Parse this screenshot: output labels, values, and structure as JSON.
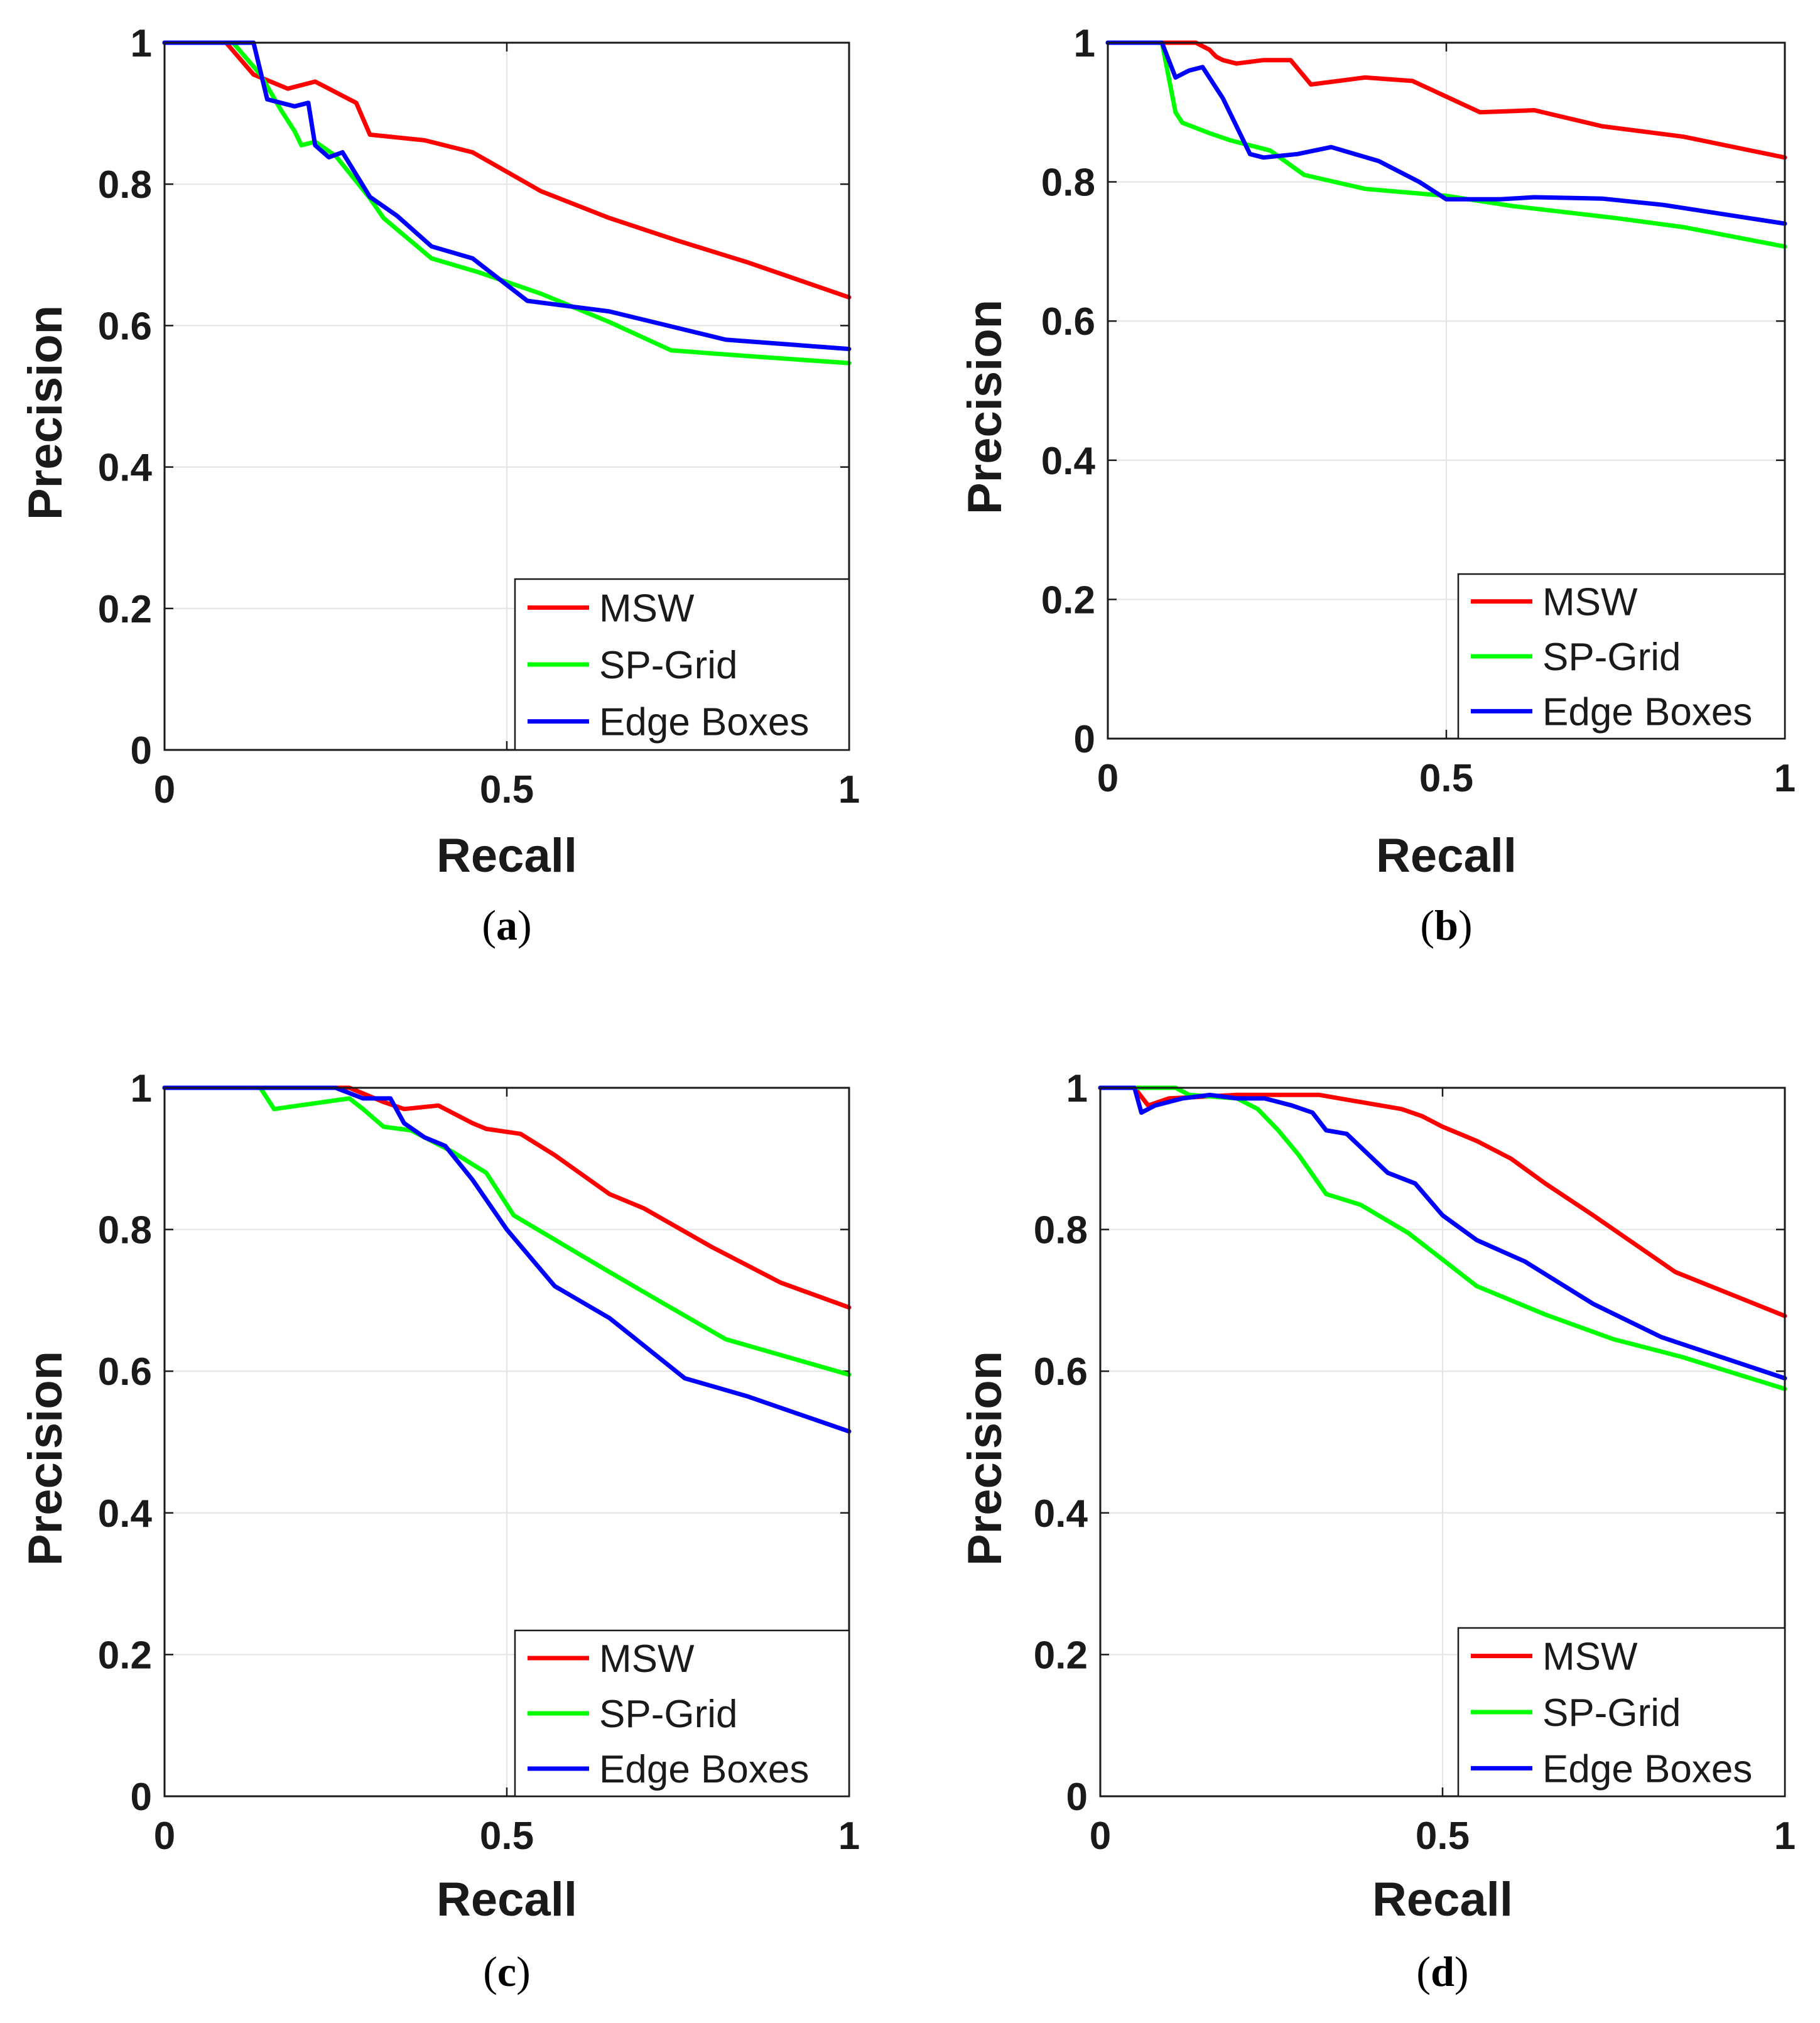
{
  "colors": {
    "MSW": "#ff0000",
    "SP-Grid": "#00ff00",
    "Edge Boxes": "#0000ff",
    "grid": "#e3e3e3",
    "axis": "#1a1a1a"
  },
  "chart_data": [
    {
      "type": "line",
      "panel": "a",
      "caption": "(a)",
      "xlabel": "Recall",
      "ylabel": "Precision",
      "xlim": [
        0,
        1
      ],
      "ylim": [
        0,
        1
      ],
      "xticks": [
        0,
        0.5,
        1
      ],
      "xtick_labels": [
        "0",
        "0.5",
        "1"
      ],
      "yticks": [
        0,
        0.2,
        0.4,
        0.6,
        0.8,
        1
      ],
      "ytick_labels": [
        "0",
        "0.2",
        "0.4",
        "0.6",
        "0.8",
        "1"
      ],
      "grid": true,
      "legend": "bottom-right",
      "series": [
        {
          "name": "MSW",
          "color": "#ff0000",
          "x": [
            0,
            0.09,
            0.13,
            0.18,
            0.22,
            0.26,
            0.28,
            0.3,
            0.38,
            0.45,
            0.55,
            0.65,
            0.75,
            0.85,
            1.0
          ],
          "y": [
            1,
            1,
            0.955,
            0.935,
            0.945,
            0.925,
            0.915,
            0.87,
            0.862,
            0.845,
            0.79,
            0.752,
            0.72,
            0.69,
            0.64
          ]
        },
        {
          "name": "SP-Grid",
          "color": "#00ff00",
          "x": [
            0,
            0.1,
            0.14,
            0.17,
            0.19,
            0.2,
            0.22,
            0.25,
            0.3,
            0.32,
            0.39,
            0.46,
            0.55,
            0.65,
            0.74,
            0.85,
            1.0
          ],
          "y": [
            1,
            1,
            0.955,
            0.905,
            0.875,
            0.855,
            0.86,
            0.84,
            0.78,
            0.752,
            0.695,
            0.675,
            0.645,
            0.605,
            0.565,
            0.557,
            0.547
          ]
        },
        {
          "name": "Edge Boxes",
          "color": "#0000ff",
          "x": [
            0,
            0.12,
            0.13,
            0.15,
            0.19,
            0.21,
            0.22,
            0.24,
            0.26,
            0.3,
            0.34,
            0.39,
            0.45,
            0.53,
            0.65,
            0.82,
            1.0
          ],
          "y": [
            1,
            1,
            1,
            0.92,
            0.91,
            0.915,
            0.855,
            0.838,
            0.845,
            0.782,
            0.755,
            0.712,
            0.695,
            0.635,
            0.62,
            0.58,
            0.567
          ]
        }
      ]
    },
    {
      "type": "line",
      "panel": "b",
      "caption": "(b)",
      "xlabel": "Recall",
      "ylabel": "Precision",
      "xlim": [
        0,
        1
      ],
      "ylim": [
        0,
        1
      ],
      "xticks": [
        0,
        0.5,
        1
      ],
      "xtick_labels": [
        "0",
        "0.5",
        "1"
      ],
      "yticks": [
        0,
        0.2,
        0.4,
        0.6,
        0.8,
        1
      ],
      "ytick_labels": [
        "0",
        "0.2",
        "0.4",
        "0.6",
        "0.8",
        "1"
      ],
      "grid": true,
      "legend": "bottom-right",
      "series": [
        {
          "name": "MSW",
          "color": "#ff0000",
          "x": [
            0,
            0.13,
            0.15,
            0.16,
            0.17,
            0.19,
            0.23,
            0.27,
            0.3,
            0.38,
            0.45,
            0.55,
            0.63,
            0.73,
            0.85,
            1.0
          ],
          "y": [
            1,
            1,
            0.99,
            0.98,
            0.975,
            0.97,
            0.975,
            0.975,
            0.94,
            0.95,
            0.945,
            0.9,
            0.903,
            0.88,
            0.865,
            0.835
          ]
        },
        {
          "name": "SP-Grid",
          "color": "#00ff00",
          "x": [
            0,
            0.08,
            0.1,
            0.11,
            0.15,
            0.18,
            0.24,
            0.29,
            0.38,
            0.5,
            0.6,
            0.75,
            0.85,
            1.0
          ],
          "y": [
            1,
            1,
            0.9,
            0.885,
            0.87,
            0.86,
            0.845,
            0.81,
            0.79,
            0.78,
            0.765,
            0.748,
            0.735,
            0.707
          ]
        },
        {
          "name": "Edge Boxes",
          "color": "#0000ff",
          "x": [
            0,
            0.08,
            0.1,
            0.12,
            0.14,
            0.17,
            0.21,
            0.23,
            0.28,
            0.33,
            0.4,
            0.46,
            0.5,
            0.58,
            0.63,
            0.73,
            0.82,
            1.0
          ],
          "y": [
            1,
            1,
            0.95,
            0.96,
            0.965,
            0.92,
            0.84,
            0.835,
            0.84,
            0.85,
            0.83,
            0.8,
            0.775,
            0.775,
            0.778,
            0.776,
            0.767,
            0.74
          ]
        }
      ]
    },
    {
      "type": "line",
      "panel": "c",
      "caption": "(c)",
      "xlabel": "Recall",
      "ylabel": "Precision",
      "xlim": [
        0,
        1
      ],
      "ylim": [
        0,
        1
      ],
      "xticks": [
        0,
        0.5,
        1
      ],
      "xtick_labels": [
        "0",
        "0.5",
        "1"
      ],
      "yticks": [
        0,
        0.2,
        0.4,
        0.6,
        0.8,
        1
      ],
      "ytick_labels": [
        "0",
        "0.2",
        "0.4",
        "0.6",
        "0.8",
        "1"
      ],
      "grid": true,
      "legend": "bottom-right",
      "series": [
        {
          "name": "MSW",
          "color": "#ff0000",
          "x": [
            0,
            0.27,
            0.32,
            0.35,
            0.4,
            0.45,
            0.47,
            0.52,
            0.57,
            0.65,
            0.7,
            0.8,
            0.9,
            1.0
          ],
          "y": [
            1,
            1,
            0.98,
            0.97,
            0.975,
            0.95,
            0.942,
            0.935,
            0.905,
            0.85,
            0.83,
            0.775,
            0.725,
            0.69
          ]
        },
        {
          "name": "SP-Grid",
          "color": "#00ff00",
          "x": [
            0,
            0.14,
            0.16,
            0.27,
            0.29,
            0.32,
            0.36,
            0.42,
            0.47,
            0.51,
            0.58,
            0.65,
            0.73,
            0.82,
            1.0
          ],
          "y": [
            1,
            1,
            0.97,
            0.985,
            0.97,
            0.945,
            0.94,
            0.91,
            0.88,
            0.82,
            0.78,
            0.74,
            0.695,
            0.645,
            0.595
          ]
        },
        {
          "name": "Edge Boxes",
          "color": "#0000ff",
          "x": [
            0,
            0.25,
            0.29,
            0.33,
            0.35,
            0.38,
            0.41,
            0.45,
            0.5,
            0.57,
            0.65,
            0.76,
            0.85,
            1.0
          ],
          "y": [
            1,
            1,
            0.985,
            0.985,
            0.95,
            0.93,
            0.918,
            0.87,
            0.8,
            0.72,
            0.675,
            0.59,
            0.565,
            0.515
          ]
        }
      ]
    },
    {
      "type": "line",
      "panel": "d",
      "caption": "(d)",
      "xlabel": "Recall",
      "ylabel": "Precision",
      "xlim": [
        0,
        1
      ],
      "ylim": [
        0,
        1
      ],
      "xticks": [
        0,
        0.5,
        1
      ],
      "xtick_labels": [
        "0",
        "0.5",
        "1"
      ],
      "yticks": [
        0,
        0.2,
        0.4,
        0.6,
        0.8,
        1
      ],
      "ytick_labels": [
        "0",
        "0.2",
        "0.4",
        "0.6",
        "0.8",
        "1"
      ],
      "grid": true,
      "legend": "bottom-right",
      "series": [
        {
          "name": "MSW",
          "color": "#ff0000",
          "x": [
            0,
            0.05,
            0.07,
            0.1,
            0.2,
            0.27,
            0.32,
            0.38,
            0.44,
            0.47,
            0.5,
            0.55,
            0.6,
            0.65,
            0.72,
            0.84,
            1.0
          ],
          "y": [
            1,
            1,
            0.975,
            0.985,
            0.99,
            0.99,
            0.99,
            0.98,
            0.97,
            0.96,
            0.945,
            0.925,
            0.9,
            0.865,
            0.82,
            0.74,
            0.678
          ]
        },
        {
          "name": "SP-Grid",
          "color": "#00ff00",
          "x": [
            0,
            0.11,
            0.13,
            0.2,
            0.23,
            0.26,
            0.29,
            0.33,
            0.38,
            0.45,
            0.55,
            0.65,
            0.75,
            0.85,
            1.0
          ],
          "y": [
            1,
            1,
            0.99,
            0.985,
            0.97,
            0.94,
            0.905,
            0.85,
            0.835,
            0.795,
            0.72,
            0.68,
            0.645,
            0.62,
            0.575
          ]
        },
        {
          "name": "Edge Boxes",
          "color": "#0000ff",
          "x": [
            0,
            0.05,
            0.06,
            0.08,
            0.12,
            0.16,
            0.2,
            0.24,
            0.28,
            0.31,
            0.33,
            0.36,
            0.42,
            0.46,
            0.5,
            0.55,
            0.62,
            0.72,
            0.82,
            1.0
          ],
          "y": [
            1,
            1,
            0.965,
            0.975,
            0.985,
            0.99,
            0.985,
            0.985,
            0.975,
            0.965,
            0.94,
            0.935,
            0.88,
            0.865,
            0.82,
            0.785,
            0.755,
            0.695,
            0.648,
            0.59
          ]
        }
      ]
    }
  ]
}
